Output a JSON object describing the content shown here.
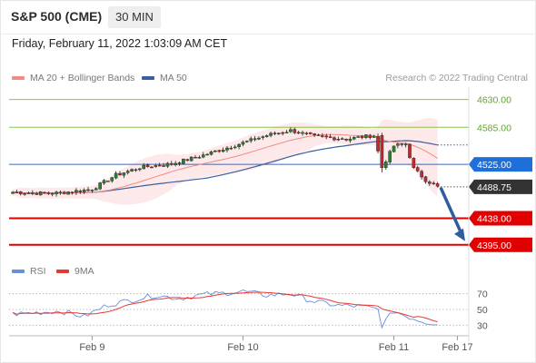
{
  "header": {
    "title": "S&P 500 (CME)",
    "timeframe": "30 MIN",
    "datetime": "Friday, February 11, 2022 1:03:09 AM CET"
  },
  "legend": {
    "ma20": {
      "label": "MA 20 + Bollinger Bands",
      "color": "#f28b82"
    },
    "ma50": {
      "label": "MA 50",
      "color": "#3a5f9e"
    },
    "credit": "Research © 2022 Trading Central"
  },
  "rsi_legend": {
    "rsi": {
      "label": "RSI",
      "color": "#6a8fd8"
    },
    "ma9": {
      "label": "9MA",
      "color": "#e53935"
    }
  },
  "chart_data": [
    {
      "type": "candlestick",
      "x_labels": [
        {
          "label": "Feb 9",
          "index": 20
        },
        {
          "label": "Feb 10",
          "index": 58
        },
        {
          "label": "Feb 11",
          "index": 96
        },
        {
          "label": "Feb 17",
          "index": 112
        }
      ],
      "ylim": [
        4380,
        4650
      ],
      "levels": [
        {
          "value": 4630.0,
          "label": "4630.00",
          "kind": "resistance",
          "color": "#8bc34a"
        },
        {
          "value": 4585.0,
          "label": "4585.00",
          "kind": "resistance",
          "color": "#8bc34a"
        },
        {
          "value": 4525.0,
          "label": "4525.00",
          "kind": "pivot",
          "color": "#1e6fd9"
        },
        {
          "value": 4488.75,
          "label": "4488.75",
          "kind": "last",
          "color": "#333333"
        },
        {
          "value": 4438.0,
          "label": "4438.00",
          "kind": "support",
          "color": "#e00000"
        },
        {
          "value": 4395.0,
          "label": "4395.00",
          "kind": "support",
          "color": "#e00000"
        }
      ],
      "key_points": [
        {
          "index": 0,
          "close": 4480
        },
        {
          "index": 10,
          "close": 4478
        },
        {
          "index": 20,
          "close": 4485
        },
        {
          "index": 26,
          "close": 4508
        },
        {
          "index": 32,
          "close": 4520
        },
        {
          "index": 40,
          "close": 4526
        },
        {
          "index": 48,
          "close": 4540
        },
        {
          "index": 56,
          "close": 4556
        },
        {
          "index": 64,
          "close": 4572
        },
        {
          "index": 70,
          "close": 4580
        },
        {
          "index": 76,
          "close": 4570
        },
        {
          "index": 84,
          "close": 4566
        },
        {
          "index": 91,
          "close": 4572
        },
        {
          "index": 93,
          "close": 4520
        },
        {
          "index": 96,
          "close": 4555
        },
        {
          "index": 99,
          "close": 4558
        },
        {
          "index": 101,
          "close": 4518
        },
        {
          "index": 104,
          "close": 4500
        },
        {
          "index": 107,
          "close": 4488.75
        }
      ],
      "projection": {
        "from": 4488.75,
        "to": 4395.0
      }
    },
    {
      "type": "line",
      "name": "RSI",
      "y_ticks": [
        70,
        50,
        30
      ],
      "ylim": [
        20,
        80
      ],
      "key_points": [
        {
          "index": 0,
          "value": 44
        },
        {
          "index": 6,
          "value": 46
        },
        {
          "index": 12,
          "value": 48
        },
        {
          "index": 18,
          "value": 41
        },
        {
          "index": 24,
          "value": 56
        },
        {
          "index": 30,
          "value": 62
        },
        {
          "index": 36,
          "value": 68
        },
        {
          "index": 42,
          "value": 64
        },
        {
          "index": 48,
          "value": 69
        },
        {
          "index": 54,
          "value": 71
        },
        {
          "index": 58,
          "value": 73
        },
        {
          "index": 64,
          "value": 68
        },
        {
          "index": 70,
          "value": 70
        },
        {
          "index": 76,
          "value": 60
        },
        {
          "index": 82,
          "value": 55
        },
        {
          "index": 88,
          "value": 54
        },
        {
          "index": 92,
          "value": 50
        },
        {
          "index": 93,
          "value": 30
        },
        {
          "index": 96,
          "value": 48
        },
        {
          "index": 100,
          "value": 40
        },
        {
          "index": 104,
          "value": 34
        },
        {
          "index": 107,
          "value": 32
        }
      ]
    }
  ]
}
